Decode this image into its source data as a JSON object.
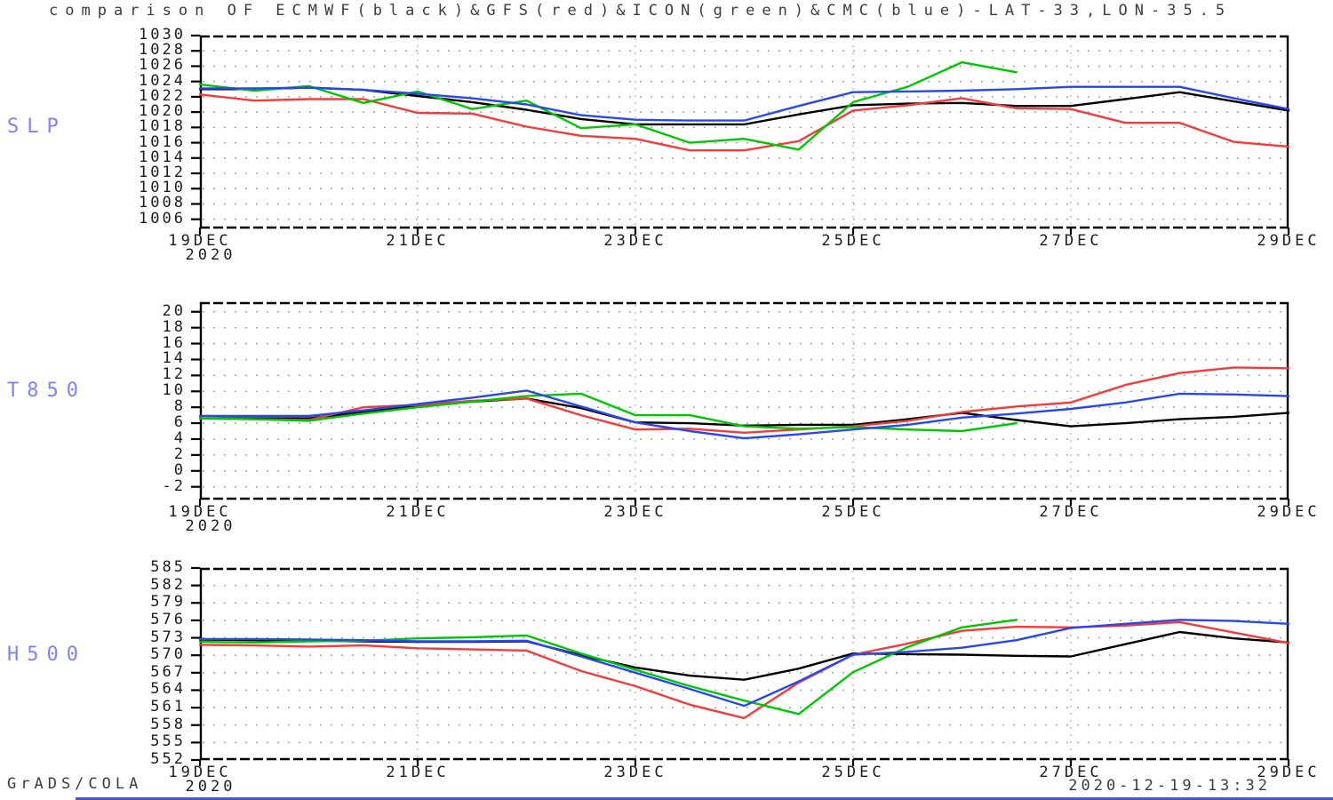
{
  "title": "comparison OF ECMWF(black)&GFS(red)&ICON(green)&CMC(blue)-LAT-33,LON-35.5",
  "footer": {
    "left": "GrADS/COLA",
    "right": "2020-12-19-13:32"
  },
  "models": [
    {
      "name": "ECMWF",
      "color": "#000000"
    },
    {
      "name": "GFS",
      "color": "#f23c3c"
    },
    {
      "name": "ICON",
      "color": "#00c800"
    },
    {
      "name": "CMC",
      "color": "#2848ee"
    }
  ],
  "chart_data": [
    {
      "type": "line",
      "label": "SLP",
      "x_start": 19.0,
      "x_step": 0.5,
      "x_tick_days": [
        19,
        21,
        23,
        25,
        27,
        29
      ],
      "x_tick_labels": [
        "19DEC",
        "21DEC",
        "23DEC",
        "25DEC",
        "27DEC",
        "29DEC"
      ],
      "year_label": "2020",
      "y_ticks": [
        1030,
        1028,
        1026,
        1024,
        1022,
        1020,
        1018,
        1016,
        1014,
        1012,
        1010,
        1008,
        1006
      ],
      "ylim": [
        1004.8,
        1030
      ],
      "grid": true,
      "series": [
        {
          "name": "ECMWF",
          "color": "#000000",
          "values": [
            1023.0,
            1023.0,
            1023.2,
            1022.9,
            1022.1,
            1021.3,
            1020.3,
            1019.1,
            1018.4,
            1018.4,
            1018.4,
            1019.7,
            1020.9,
            1021.1,
            1021.2,
            1020.8,
            1020.8,
            1021.7,
            1022.6,
            1021.4,
            1020.2
          ]
        },
        {
          "name": "GFS",
          "color": "#f23c3c",
          "values": [
            1022.3,
            1021.5,
            1021.7,
            1021.7,
            1019.9,
            1019.8,
            1018.1,
            1016.9,
            1016.5,
            1015.0,
            1015.0,
            1016.2,
            1020.2,
            1020.9,
            1021.8,
            1020.5,
            1020.4,
            1018.6,
            1018.6,
            1016.1,
            1015.5
          ]
        },
        {
          "name": "ICON",
          "color": "#00c800",
          "values": [
            1023.6,
            1022.8,
            1023.4,
            1021.2,
            1022.7,
            1020.4,
            1021.5,
            1017.9,
            1018.4,
            1016.0,
            1016.5,
            1015.1,
            1021.3,
            1023.3,
            1026.5,
            1025.2
          ]
        },
        {
          "name": "CMC",
          "color": "#2848ee",
          "values": [
            1023.1,
            1023.1,
            1023.2,
            1022.9,
            1022.4,
            1021.8,
            1021.0,
            1019.6,
            1019.0,
            1018.9,
            1018.9,
            1020.8,
            1022.6,
            1022.7,
            1022.8,
            1023.0,
            1023.3,
            1023.3,
            1023.3,
            1021.8,
            1020.4
          ]
        }
      ]
    },
    {
      "type": "line",
      "label": "T850",
      "x_start": 19.0,
      "x_step": 0.5,
      "x_tick_days": [
        19,
        21,
        23,
        25,
        27,
        29
      ],
      "x_tick_labels": [
        "19DEC",
        "21DEC",
        "23DEC",
        "25DEC",
        "27DEC",
        "29DEC"
      ],
      "year_label": "2020",
      "y_ticks": [
        20,
        18,
        16,
        14,
        12,
        10,
        8,
        6,
        4,
        2,
        0,
        -2
      ],
      "ylim": [
        -3.6,
        21.2
      ],
      "grid": true,
      "series": [
        {
          "name": "ECMWF",
          "color": "#000000",
          "values": [
            6.6,
            6.6,
            6.6,
            7.4,
            8.2,
            8.7,
            9.1,
            7.9,
            6.1,
            6.0,
            5.7,
            5.8,
            5.8,
            6.5,
            7.3,
            6.4,
            5.6,
            6.0,
            6.5,
            6.8,
            7.3
          ]
        },
        {
          "name": "GFS",
          "color": "#f23c3c",
          "values": [
            6.6,
            6.5,
            6.4,
            8.0,
            8.3,
            8.8,
            9.1,
            7.0,
            5.2,
            5.3,
            4.8,
            5.2,
            5.6,
            6.3,
            7.4,
            8.1,
            8.6,
            10.8,
            12.3,
            13.0,
            12.9
          ]
        },
        {
          "name": "ICON",
          "color": "#00c800",
          "values": [
            6.6,
            6.5,
            6.3,
            7.2,
            8.0,
            8.7,
            9.4,
            9.7,
            7.0,
            7.0,
            5.6,
            5.3,
            5.5,
            5.2,
            5.0,
            6.0
          ]
        },
        {
          "name": "CMC",
          "color": "#2848ee",
          "values": [
            6.9,
            6.9,
            6.9,
            7.6,
            8.4,
            9.2,
            10.1,
            8.1,
            6.1,
            5.0,
            4.1,
            4.6,
            5.2,
            5.8,
            6.7,
            7.2,
            7.8,
            8.6,
            9.7,
            9.6,
            9.4
          ]
        }
      ]
    },
    {
      "type": "line",
      "label": "H500",
      "x_start": 19.0,
      "x_step": 0.5,
      "x_tick_days": [
        19,
        21,
        23,
        25,
        27,
        29
      ],
      "x_tick_labels": [
        "19DEC",
        "21DEC",
        "23DEC",
        "25DEC",
        "27DEC",
        "29DEC"
      ],
      "year_label": "2020",
      "y_ticks": [
        585,
        582,
        579,
        576,
        573,
        570,
        567,
        564,
        561,
        558,
        555,
        552
      ],
      "ylim": [
        552,
        585
      ],
      "grid": true,
      "series": [
        {
          "name": "ECMWF",
          "color": "#000000",
          "values": [
            572.7,
            572.6,
            572.5,
            572.4,
            572.3,
            572.3,
            572.4,
            570.0,
            567.9,
            566.5,
            565.8,
            567.7,
            570.3,
            570.2,
            570.1,
            569.9,
            569.8,
            571.9,
            574.0,
            572.9,
            572.2
          ]
        },
        {
          "name": "GFS",
          "color": "#f23c3c",
          "values": [
            571.8,
            571.7,
            571.5,
            571.7,
            571.2,
            571.0,
            570.8,
            567.3,
            564.7,
            561.5,
            559.2,
            565.3,
            570.1,
            572.0,
            574.2,
            574.9,
            574.8,
            575.1,
            575.7,
            573.9,
            572.1
          ]
        },
        {
          "name": "ICON",
          "color": "#00c800",
          "values": [
            572.3,
            572.2,
            572.4,
            572.5,
            572.9,
            573.1,
            573.4,
            570.3,
            567.5,
            564.7,
            562.2,
            559.9,
            567.1,
            571.4,
            574.8,
            576.1
          ]
        },
        {
          "name": "CMC",
          "color": "#2848ee",
          "values": [
            572.8,
            572.8,
            572.7,
            572.6,
            572.4,
            572.4,
            572.5,
            569.8,
            567.0,
            564.2,
            561.3,
            565.5,
            570.1,
            570.6,
            571.3,
            572.6,
            574.7,
            575.4,
            576.1,
            575.9,
            575.4
          ]
        }
      ]
    }
  ]
}
